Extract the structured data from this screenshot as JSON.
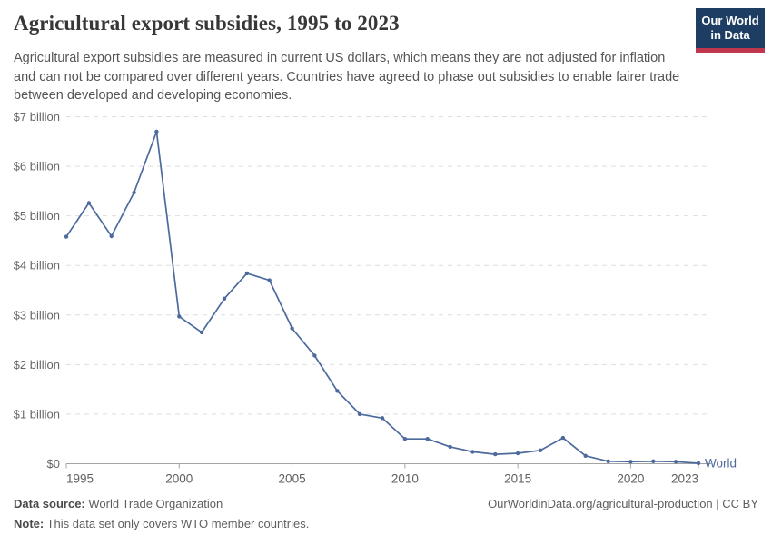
{
  "header": {
    "title": "Agricultural export subsidies, 1995 to 2023",
    "subtitle": "Agricultural export subsidies are measured in current US dollars, which means they are not adjusted for inflation and can not be compared over different years. Countries have agreed to phase out subsidies to enable fairer trade between developed and developing economies.",
    "logo": {
      "line1": "Our World",
      "line2": "in Data",
      "bg_color": "#1d3d63",
      "accent_color": "#c0364c"
    }
  },
  "chart_data": {
    "type": "line",
    "title": "Agricultural export subsidies, 1995 to 2023",
    "unit": "current US dollars (billions)",
    "xlabel": "",
    "ylabel": "",
    "xlim": [
      1995,
      2023
    ],
    "ylim": [
      0,
      7
    ],
    "grid": "horizontal-dashed",
    "legend_position": "end-of-line",
    "x": [
      1995,
      1996,
      1997,
      1998,
      1999,
      2000,
      2001,
      2002,
      2003,
      2004,
      2005,
      2006,
      2007,
      2008,
      2009,
      2010,
      2011,
      2012,
      2013,
      2014,
      2015,
      2016,
      2017,
      2018,
      2019,
      2020,
      2021,
      2022,
      2023
    ],
    "series": [
      {
        "name": "World",
        "color": "#4c6a9c",
        "values": [
          4.58,
          5.26,
          4.59,
          5.47,
          6.7,
          2.97,
          2.65,
          3.33,
          3.84,
          3.7,
          2.73,
          2.18,
          1.47,
          1.0,
          0.92,
          0.5,
          0.5,
          0.34,
          0.24,
          0.19,
          0.21,
          0.27,
          0.52,
          0.16,
          0.05,
          0.04,
          0.05,
          0.04,
          0.01
        ]
      }
    ],
    "x_ticks": [
      {
        "value": 1995,
        "label": "1995"
      },
      {
        "value": 2000,
        "label": "2000"
      },
      {
        "value": 2005,
        "label": "2005"
      },
      {
        "value": 2010,
        "label": "2010"
      },
      {
        "value": 2015,
        "label": "2015"
      },
      {
        "value": 2020,
        "label": "2020"
      },
      {
        "value": 2023,
        "label": "2023"
      }
    ],
    "y_ticks": [
      {
        "value": 0,
        "label": "$0"
      },
      {
        "value": 1,
        "label": "$1 billion"
      },
      {
        "value": 2,
        "label": "$2 billion"
      },
      {
        "value": 3,
        "label": "$3 billion"
      },
      {
        "value": 4,
        "label": "$4 billion"
      },
      {
        "value": 5,
        "label": "$5 billion"
      },
      {
        "value": 6,
        "label": "$6 billion"
      },
      {
        "value": 7,
        "label": "$7 billion"
      }
    ]
  },
  "footer": {
    "source_label": "Data source:",
    "source_value": " World Trade Organization",
    "note_label": "Note:",
    "note_value": " This data set only covers WTO member countries.",
    "credit": "OurWorldinData.org/agricultural-production | CC BY"
  }
}
